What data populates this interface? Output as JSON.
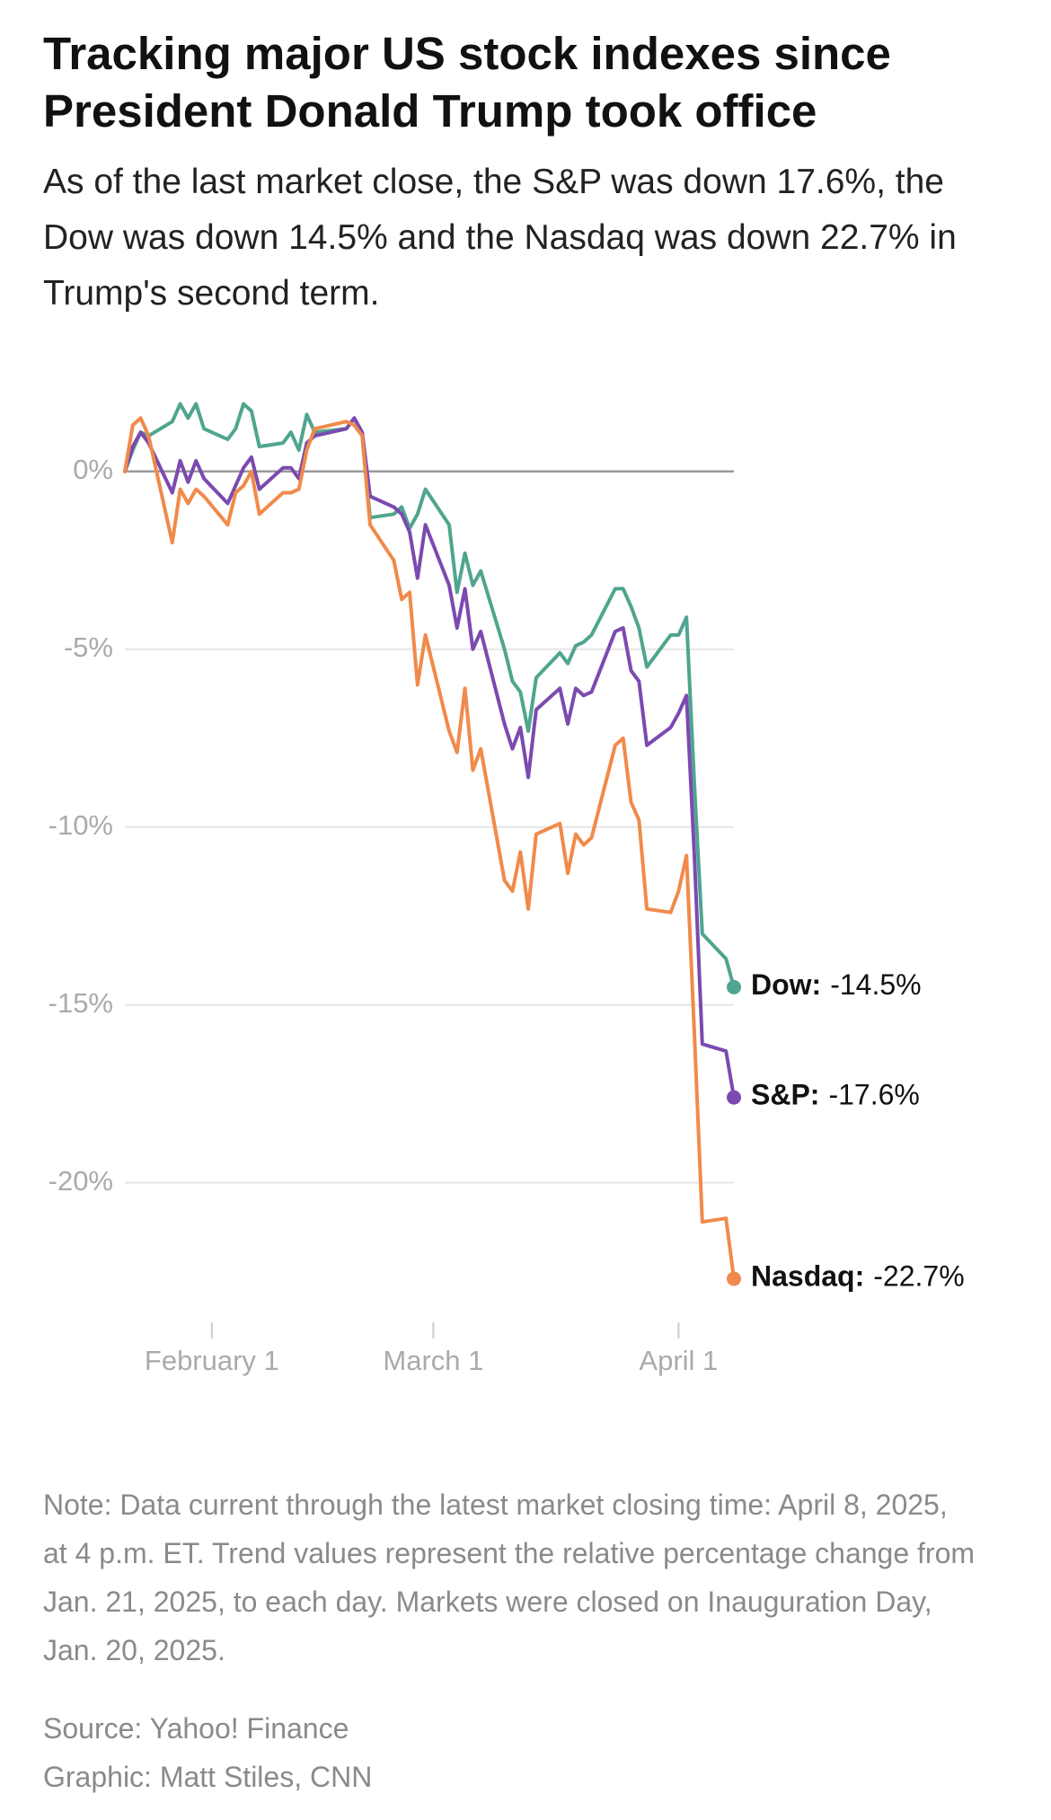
{
  "chart_data": {
    "type": "line",
    "title": "Tracking major US stock indexes since President Donald Trump took office",
    "subtitle": "As of the last market close, the S&P was down 17.6%, the Dow was down 14.5% and the Nasdaq was down 22.7% in Trump's second term.",
    "x": [
      "2025-01-21",
      "2025-01-22",
      "2025-01-23",
      "2025-01-24",
      "2025-01-27",
      "2025-01-28",
      "2025-01-29",
      "2025-01-30",
      "2025-01-31",
      "2025-02-03",
      "2025-02-04",
      "2025-02-05",
      "2025-02-06",
      "2025-02-07",
      "2025-02-10",
      "2025-02-11",
      "2025-02-12",
      "2025-02-13",
      "2025-02-14",
      "2025-02-18",
      "2025-02-19",
      "2025-02-20",
      "2025-02-21",
      "2025-02-24",
      "2025-02-25",
      "2025-02-26",
      "2025-02-27",
      "2025-02-28",
      "2025-03-03",
      "2025-03-04",
      "2025-03-05",
      "2025-03-06",
      "2025-03-07",
      "2025-03-10",
      "2025-03-11",
      "2025-03-12",
      "2025-03-13",
      "2025-03-14",
      "2025-03-17",
      "2025-03-18",
      "2025-03-19",
      "2025-03-20",
      "2025-03-21",
      "2025-03-24",
      "2025-03-25",
      "2025-03-26",
      "2025-03-27",
      "2025-03-28",
      "2025-03-31",
      "2025-04-01",
      "2025-04-02",
      "2025-04-03",
      "2025-04-04",
      "2025-04-07",
      "2025-04-08"
    ],
    "series": [
      {
        "name": "Dow",
        "label": "Dow:",
        "color": "#4fa58f",
        "last_value_label": "-14.5%",
        "values": [
          0,
          0.6,
          1.1,
          1.0,
          1.4,
          1.9,
          1.5,
          1.9,
          1.2,
          0.9,
          1.2,
          1.9,
          1.7,
          0.7,
          0.8,
          1.1,
          0.6,
          1.6,
          1.1,
          1.2,
          1.5,
          1.0,
          -1.3,
          -1.2,
          -1.0,
          -1.6,
          -1.2,
          -0.5,
          -1.5,
          -3.4,
          -2.3,
          -3.2,
          -2.8,
          -5.0,
          -5.9,
          -6.2,
          -7.3,
          -5.8,
          -5.1,
          -5.4,
          -4.9,
          -4.8,
          -4.6,
          -3.3,
          -3.3,
          -3.8,
          -4.4,
          -5.5,
          -4.6,
          -4.6,
          -4.1,
          -8.8,
          -13.0,
          -13.7,
          -14.5
        ]
      },
      {
        "name": "S&P",
        "label": "S&P:",
        "color": "#7b4ab0",
        "last_value_label": "-17.6%",
        "values": [
          0,
          0.7,
          1.1,
          0.8,
          -0.6,
          0.3,
          -0.3,
          0.3,
          -0.2,
          -0.9,
          -0.4,
          0.1,
          0.4,
          -0.5,
          0.1,
          0.1,
          -0.2,
          0.8,
          1.0,
          1.2,
          1.5,
          1.1,
          -0.7,
          -1.0,
          -1.2,
          -1.7,
          -3.0,
          -1.5,
          -3.2,
          -4.4,
          -3.3,
          -5.0,
          -4.5,
          -7.1,
          -7.8,
          -7.2,
          -8.6,
          -6.7,
          -6.1,
          -7.1,
          -6.1,
          -6.3,
          -6.2,
          -4.5,
          -4.4,
          -5.6,
          -5.9,
          -7.7,
          -7.2,
          -6.8,
          -6.3,
          -10.8,
          -16.1,
          -16.3,
          -17.6
        ]
      },
      {
        "name": "Nasdaq",
        "label": "Nasdaq:",
        "color": "#f08a4b",
        "last_value_label": "-22.7%",
        "values": [
          0,
          1.3,
          1.5,
          1.0,
          -2.0,
          -0.5,
          -0.9,
          -0.5,
          -0.7,
          -1.5,
          -0.6,
          -0.4,
          0.0,
          -1.2,
          -0.6,
          -0.6,
          -0.5,
          0.6,
          1.2,
          1.4,
          1.3,
          1.0,
          -1.5,
          -2.5,
          -3.6,
          -3.4,
          -6.0,
          -4.6,
          -7.3,
          -7.9,
          -6.1,
          -8.4,
          -7.8,
          -11.5,
          -11.8,
          -10.7,
          -12.3,
          -10.2,
          -9.9,
          -11.3,
          -10.2,
          -10.5,
          -10.3,
          -7.7,
          -7.5,
          -9.3,
          -9.8,
          -12.3,
          -12.4,
          -11.8,
          -10.8,
          -15.8,
          -21.1,
          -21.0,
          -22.7
        ]
      }
    ],
    "xlim": [
      "2025-01-21",
      "2025-04-08"
    ],
    "xticks": [
      {
        "value": "2025-02-01",
        "label": "February 1"
      },
      {
        "value": "2025-03-01",
        "label": "March 1"
      },
      {
        "value": "2025-04-01",
        "label": "April 1"
      }
    ],
    "ylim": [
      -24,
      3
    ],
    "yticks": [
      {
        "value": 0,
        "label": "0%"
      },
      {
        "value": -5,
        "label": "-5%"
      },
      {
        "value": -10,
        "label": "-10%"
      },
      {
        "value": -15,
        "label": "-15%"
      },
      {
        "value": -20,
        "label": "-20%"
      }
    ],
    "grid": true,
    "note": "Note: Data current through the latest market closing time: April 8, 2025, at 4 p.m. ET. Trend values represent the relative percentage change from Jan. 21, 2025, to each day. Markets were closed on Inauguration Day, Jan. 20, 2025.",
    "source": "Source: Yahoo! Finance",
    "credit": "Graphic: Matt Stiles, CNN"
  }
}
